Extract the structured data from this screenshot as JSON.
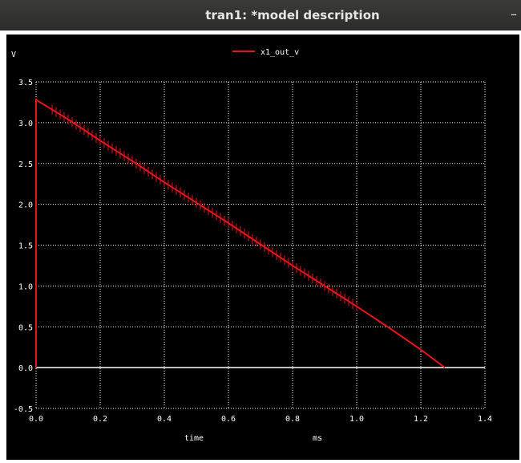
{
  "window": {
    "title": "tran1: *model description",
    "minimize_icon": "minimize-icon"
  },
  "chart_data": {
    "type": "line",
    "ylabel_unit": "V",
    "xlabel": "time",
    "xunit": "ms",
    "xlim": [
      0.0,
      1.4
    ],
    "ylim": [
      -0.5,
      3.5
    ],
    "x_ticks": [
      "0.0",
      "0.2",
      "0.4",
      "0.6",
      "0.8",
      "1.0",
      "1.2",
      "1.4"
    ],
    "y_ticks": [
      "-0.5",
      "0.0",
      "0.5",
      "1.0",
      "1.5",
      "2.0",
      "2.5",
      "3.0",
      "3.5"
    ],
    "grid": true,
    "legend_position": "top-center",
    "colors": {
      "background": "#000000",
      "grid": "#ffffff",
      "series": "#e8141b",
      "zero_line": "#ffffff"
    },
    "series": [
      {
        "name": "x1_out_v",
        "x": [
          0.0,
          0.0,
          0.1,
          0.2,
          0.3,
          0.4,
          0.5,
          0.6,
          0.7,
          0.8,
          0.9,
          1.0,
          1.1,
          1.2,
          1.275
        ],
        "y": [
          0.0,
          3.28,
          3.04,
          2.78,
          2.53,
          2.27,
          2.02,
          1.77,
          1.51,
          1.25,
          1.0,
          0.75,
          0.49,
          0.22,
          0.0
        ]
      }
    ]
  }
}
